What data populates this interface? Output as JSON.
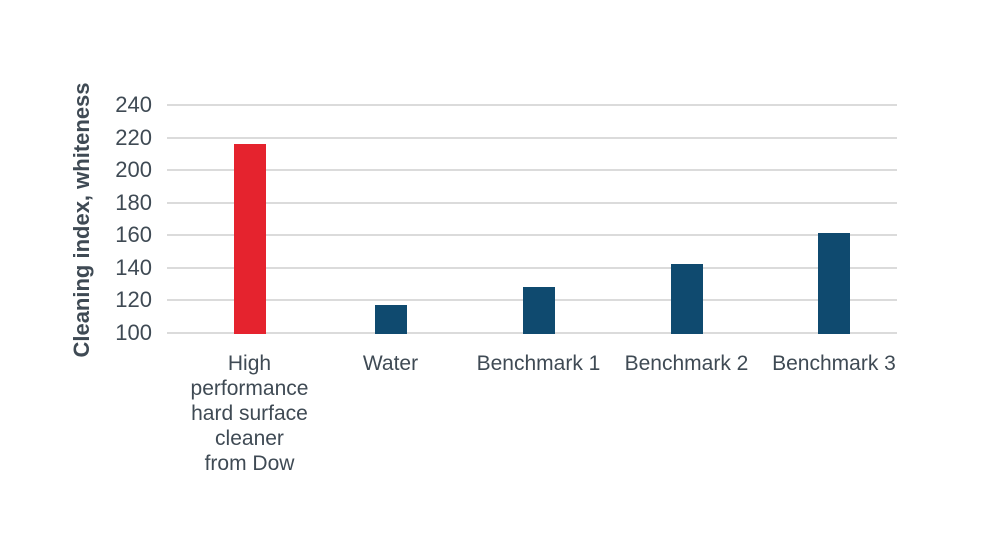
{
  "page": {
    "background": "#FFFFFF"
  },
  "chart_data": {
    "type": "bar",
    "title": "",
    "xlabel": "",
    "ylabel": "Cleaning index, whiteness",
    "categories": [
      "High\nperformance\nhard surface\ncleaner\nfrom Dow",
      "Water",
      "Benchmark 1",
      "Benchmark 2",
      "Benchmark 3"
    ],
    "values": [
      216,
      117,
      128,
      142,
      161
    ],
    "bar_colors": [
      "#E5232E",
      "#0F4A6F",
      "#0F4A6F",
      "#0F4A6F",
      "#0F4A6F"
    ],
    "ylim": [
      100,
      240
    ],
    "yticks": [
      240,
      220,
      200,
      180,
      160,
      140,
      120,
      100
    ],
    "grid": "horizontal",
    "legend": "none",
    "colors": {
      "accent_red": "#E5232E",
      "bar_blue": "#0F4A6F",
      "axis_text": "#3F4A54",
      "gridline": "#DBDBDB"
    }
  }
}
